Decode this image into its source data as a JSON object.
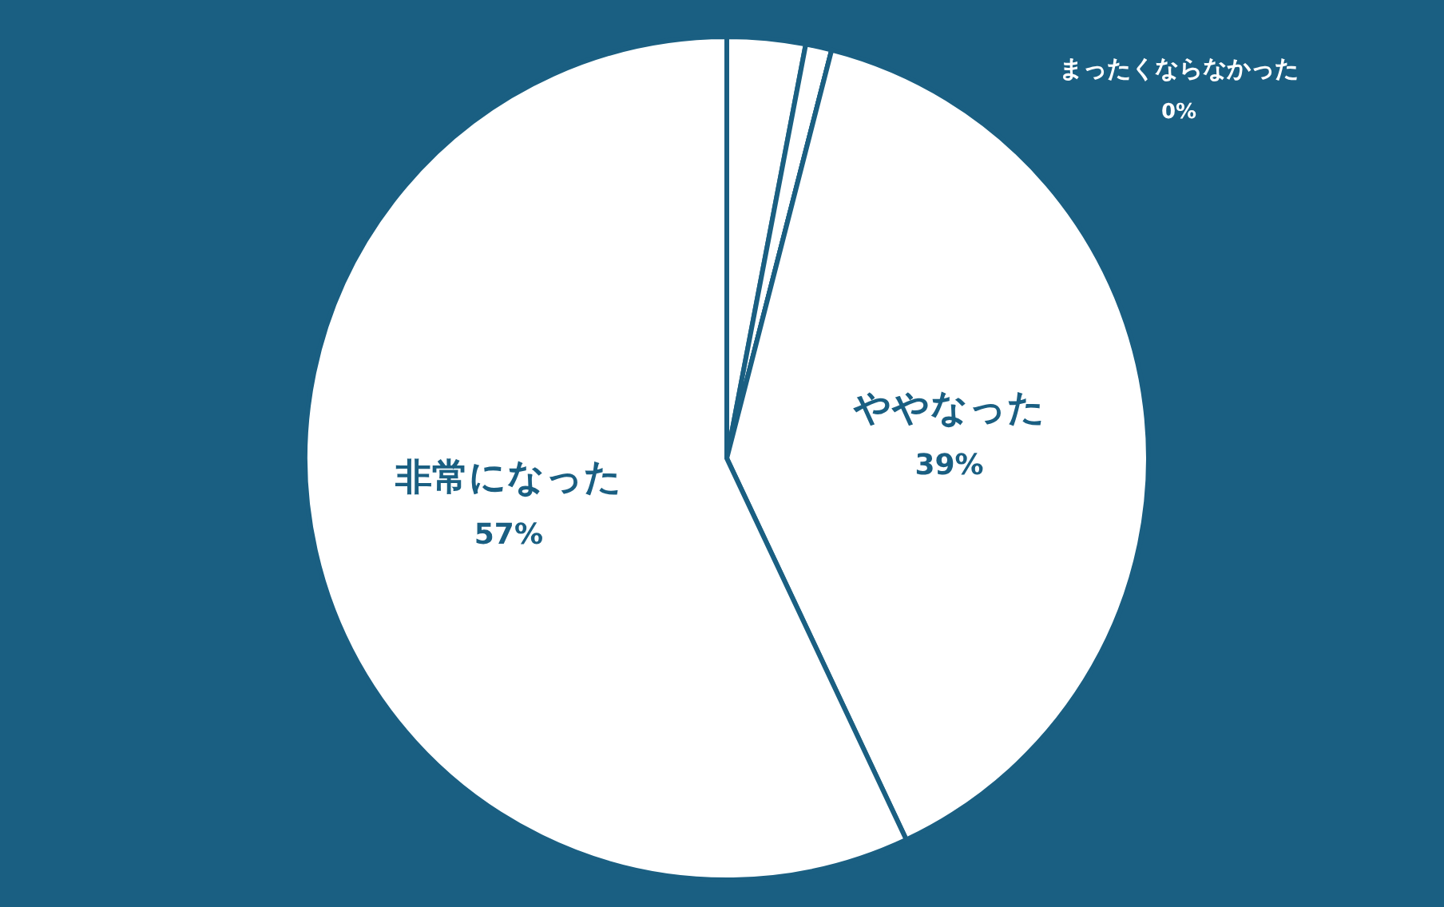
{
  "chart_data": {
    "type": "pie",
    "categories": [
      null,
      null,
      "まったくならなかった",
      "ややなった",
      "非常になった"
    ],
    "values": [
      3,
      1,
      0,
      39,
      57
    ],
    "colors": [
      "#ffffff",
      "#ffffff",
      "#ffffff",
      "#ffffff",
      "#ffffff"
    ],
    "value_labels": [
      null,
      null,
      "0%",
      "39%",
      "57%"
    ]
  }
}
